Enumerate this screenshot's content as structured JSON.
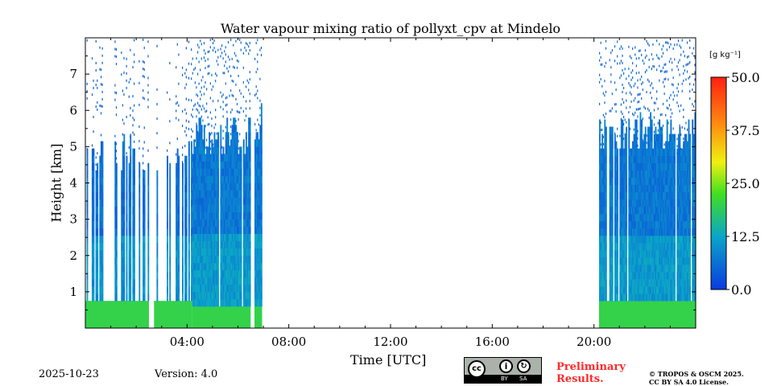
{
  "chart_data": {
    "type": "heatmap",
    "title": "Water vapour mixing ratio of pollyxt_cpv at Mindelo",
    "xlabel": "Time [UTC]",
    "ylabel": "Height [km]",
    "xlim_hours": [
      0,
      24
    ],
    "ylim_km": [
      0,
      8
    ],
    "xticks": [
      "04:00",
      "08:00",
      "12:00",
      "16:00",
      "20:00"
    ],
    "yticks": [
      "1",
      "2",
      "3",
      "4",
      "5",
      "6",
      "7"
    ],
    "colorbar": {
      "label": "[g kg⁻¹]",
      "min": 0,
      "max": 50,
      "ticks": [
        "0.0",
        "12.5",
        "25.0",
        "37.5",
        "50.0"
      ]
    },
    "segments": [
      {
        "start_h": 0.0,
        "end_h": 2.5,
        "surface_value": 20,
        "surface_top_km": 0.75,
        "upper_value": 6,
        "top_km": 5.0,
        "coverage": 0.35
      },
      {
        "start_h": 2.7,
        "end_h": 4.2,
        "surface_value": 20,
        "surface_top_km": 0.75,
        "upper_value": 6,
        "top_km": 5.0,
        "coverage": 0.3
      },
      {
        "start_h": 4.2,
        "end_h": 6.5,
        "surface_value": 20,
        "surface_top_km": 0.6,
        "upper_value": 7,
        "top_km": 5.5,
        "coverage": 0.95
      },
      {
        "start_h": 6.65,
        "end_h": 6.95,
        "surface_value": 20,
        "surface_top_km": 0.6,
        "upper_value": 7,
        "top_km": 6.0,
        "coverage": 0.95
      },
      {
        "start_h": 20.2,
        "end_h": 24.0,
        "surface_value": 20,
        "surface_top_km": 0.75,
        "upper_value": 7,
        "top_km": 5.6,
        "coverage": 0.85
      }
    ]
  },
  "footer": {
    "date": "2025-10-23",
    "version": "Version: 4.0",
    "preliminary": "Preliminary Results.",
    "copyright_line1": "© TROPOS & OSCM 2025.",
    "copyright_line2": "CC BY SA 4.0 License.",
    "license_badge": {
      "cc": "cc",
      "by": "BY",
      "sa": "SA"
    }
  },
  "colors": {
    "preliminary": "#ff2a2a"
  }
}
